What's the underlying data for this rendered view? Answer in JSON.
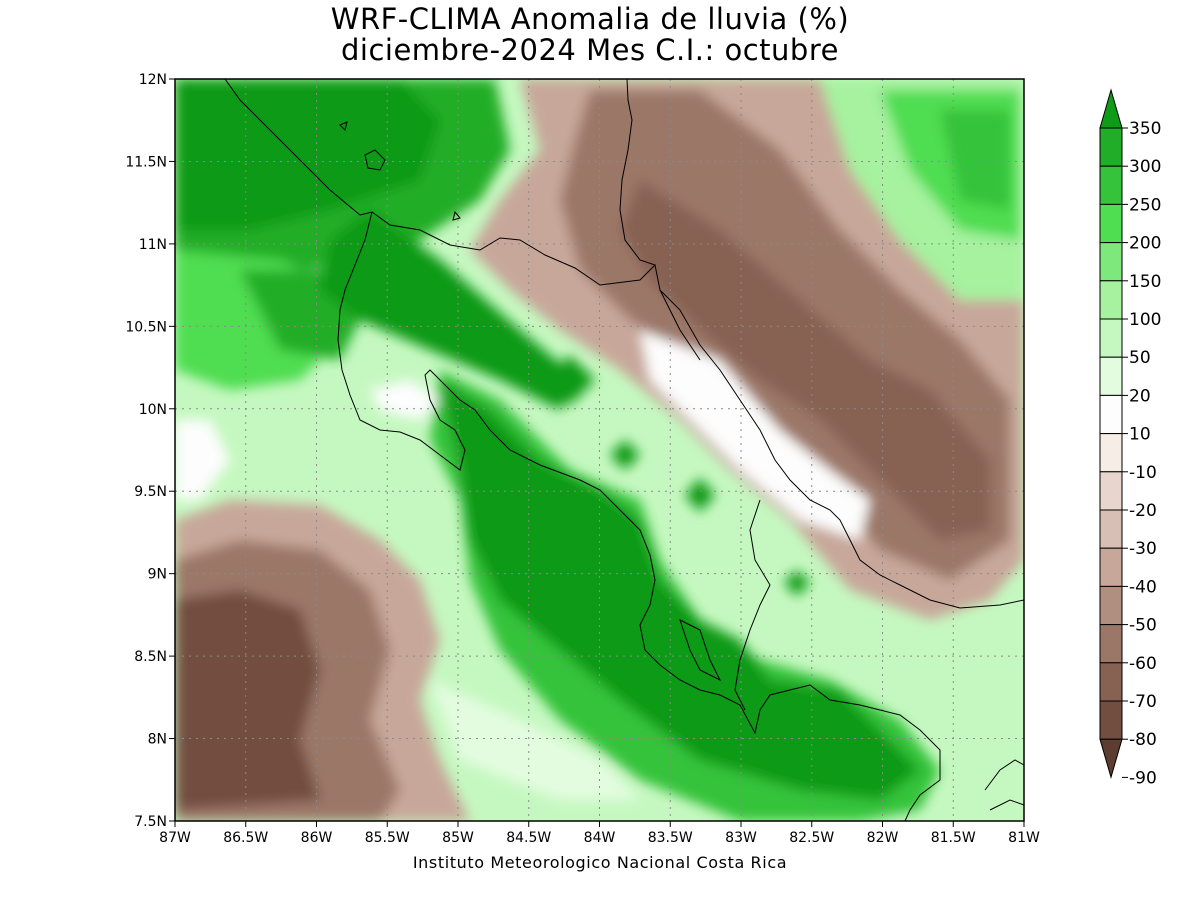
{
  "title": {
    "line1": "WRF-CLIMA Anomalia de lluvia (%)",
    "line2": "diciembre-2024 Mes C.I.: octubre"
  },
  "map": {
    "lon_range": [
      -87,
      -81
    ],
    "lat_range": [
      7.5,
      12
    ],
    "x_ticks": [
      "87W",
      "86.5W",
      "86W",
      "85.5W",
      "85W",
      "84.5W",
      "84W",
      "83.5W",
      "83W",
      "82.5W",
      "82W",
      "81.5W",
      "81W"
    ],
    "y_ticks": [
      "7.5N",
      "8N",
      "8.5N",
      "9N",
      "9.5N",
      "10N",
      "10.5N",
      "11N",
      "11.5N",
      "12N"
    ],
    "grid": true
  },
  "colorbar": {
    "labels": [
      "350",
      "300",
      "250",
      "200",
      "150",
      "100",
      "50",
      "20",
      "10",
      "-10",
      "-20",
      "-30",
      "-40",
      "-50",
      "-60",
      "-70",
      "-80",
      "-90"
    ],
    "colors": [
      "#0f9a17",
      "#21ad28",
      "#35c33b",
      "#4fdd51",
      "#7fe87d",
      "#a6f29f",
      "#c5f8c0",
      "#e3fce0",
      "#fdfdfd",
      "#f5ede6",
      "#e8d6ce",
      "#d8bfb5",
      "#c7a79a",
      "#b08e80",
      "#9b7767",
      "#876252",
      "#724e41",
      "#5e3d31"
    ]
  },
  "credit": "Instituto Meteorologico Nacional Costa Rica"
}
